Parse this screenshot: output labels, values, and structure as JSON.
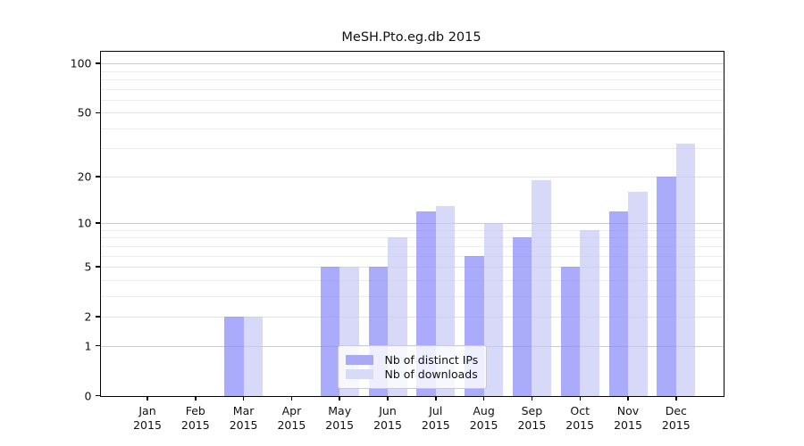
{
  "chart_data": {
    "type": "bar",
    "title": "MeSH.Pto.eg.db 2015",
    "categories": [
      "Jan",
      "Feb",
      "Mar",
      "Apr",
      "May",
      "Jun",
      "Jul",
      "Aug",
      "Sep",
      "Oct",
      "Nov",
      "Dec"
    ],
    "category_year": "2015",
    "series": [
      {
        "name": "Nb of distinct IPs",
        "values": [
          0,
          0,
          2,
          0,
          5,
          5,
          12,
          6,
          8,
          5,
          12,
          20
        ]
      },
      {
        "name": "Nb of downloads",
        "values": [
          0,
          0,
          2,
          0,
          5,
          8,
          13,
          10,
          19,
          9,
          16,
          32
        ]
      }
    ],
    "yscale": "log(1+x)",
    "y_tick_labels": [
      "0",
      "1",
      "2",
      "5",
      "10",
      "20",
      "50",
      "100"
    ],
    "y_tick_values": [
      0,
      1,
      2,
      5,
      10,
      20,
      50,
      100
    ],
    "ylim": [
      0,
      113
    ],
    "grid": "horizontal",
    "legend_position": "bottom-center-inside"
  },
  "legend": {
    "items": [
      {
        "label": "Nb of distinct IPs"
      },
      {
        "label": "Nb of downloads"
      }
    ]
  },
  "colors": {
    "ips_bar": "rgba(136,136,251,0.70)",
    "downloads_bar": "rgba(198,198,246,0.68)",
    "ips_solid": "#a9a9f7",
    "downloads_solid": "#d9d9f8",
    "grid_major": "#cccccc",
    "grid_labeled": "#e3e3e3",
    "grid_minor": "#ececec",
    "axis": "#000000",
    "text": "#111111"
  }
}
